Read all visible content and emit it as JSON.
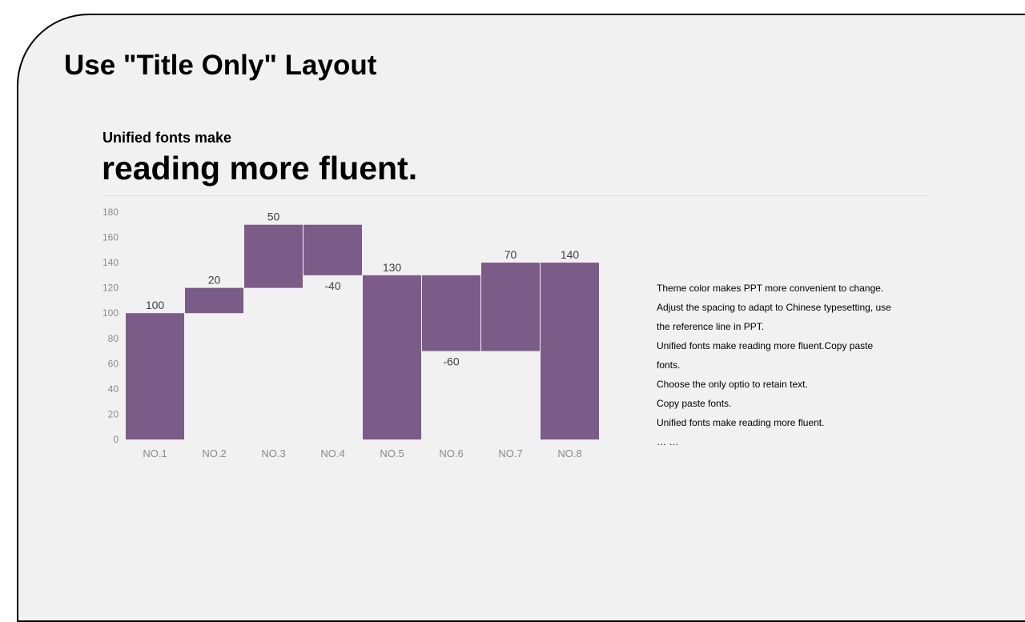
{
  "slide": {
    "title": "Use \"Title Only\" Layout",
    "subtitle_small": "Unified fonts make",
    "subtitle_big": "reading more fluent."
  },
  "description": [
    "Theme  color makes PPT more convenient  to change.",
    "Adjust the spacing to adapt to Chinese typesetting, use",
    "the reference line in PPT.",
    "Unified fonts make reading more fluent.Copy paste",
    "fonts.",
    "Choose the only optio to retain text.",
    "Copy paste  fonts.",
    "Unified fonts make reading more fluent.",
    "… …"
  ],
  "chart_data": {
    "type": "bar",
    "subtype": "waterfall",
    "categories": [
      "NO.1",
      "NO.2",
      "NO.3",
      "NO.4",
      "NO.5",
      "NO.6",
      "NO.7",
      "NO.8"
    ],
    "changes": [
      100,
      20,
      50,
      -40,
      130,
      -60,
      70,
      140
    ],
    "labels": [
      "100",
      "20",
      "50",
      "-40",
      "130",
      "-60",
      "70",
      "140"
    ],
    "bars": [
      {
        "base": 0,
        "top": 100
      },
      {
        "base": 100,
        "top": 120
      },
      {
        "base": 120,
        "top": 170
      },
      {
        "base": 130,
        "top": 170
      },
      {
        "base": 0,
        "top": 130
      },
      {
        "base": 70,
        "top": 130
      },
      {
        "base": 70,
        "top": 140
      },
      {
        "base": 0,
        "top": 140
      }
    ],
    "ylim": [
      0,
      180
    ],
    "yticks": [
      "0",
      "20",
      "40",
      "60",
      "80",
      "100",
      "120",
      "140",
      "160",
      "180"
    ],
    "grid": false,
    "bar_color": "#7b5b88"
  }
}
